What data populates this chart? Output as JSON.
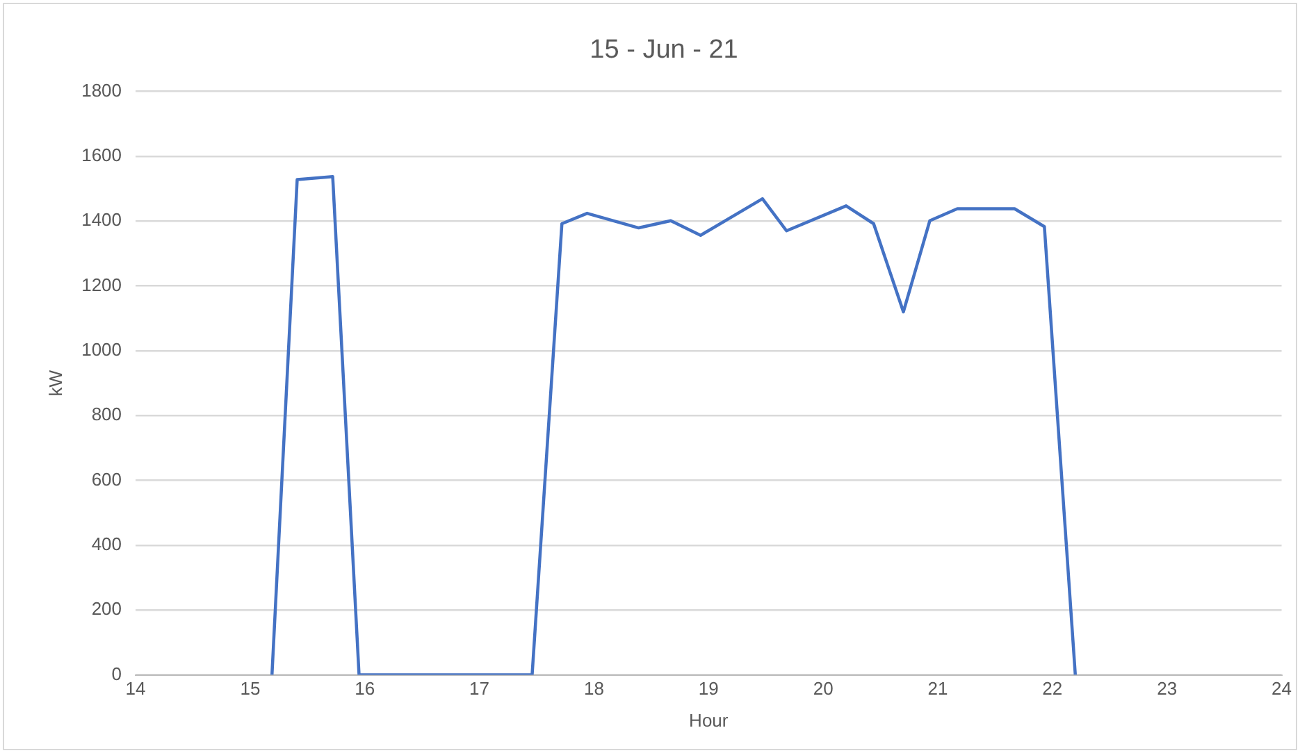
{
  "chart_data": {
    "type": "line",
    "title": "15 - Jun - 21",
    "xlabel": "Hour",
    "ylabel": "kW",
    "series": [
      {
        "color": "#4472c4",
        "x": [
          15.19,
          15.41,
          15.72,
          15.95,
          17.46,
          17.72,
          17.94,
          18.39,
          18.67,
          18.93,
          19.47,
          19.68,
          20.2,
          20.44,
          20.7,
          20.93,
          21.17,
          21.67,
          21.93,
          22.2
        ],
        "values": [
          0,
          1528,
          1537,
          0,
          0,
          1392,
          1424,
          1379,
          1401,
          1356,
          1469,
          1370,
          1447,
          1392,
          1120,
          1401,
          1438,
          1438,
          1383,
          0
        ]
      }
    ],
    "xlim": [
      14,
      24
    ],
    "xticks": [
      14,
      15,
      16,
      17,
      18,
      19,
      20,
      21,
      22,
      23,
      24
    ],
    "ylim": [
      0,
      1800
    ],
    "yticks": [
      0,
      200,
      400,
      600,
      800,
      1000,
      1200,
      1400,
      1600,
      1800
    ],
    "grid": "y",
    "legend": false,
    "marker": "none",
    "line_style": "solid"
  }
}
